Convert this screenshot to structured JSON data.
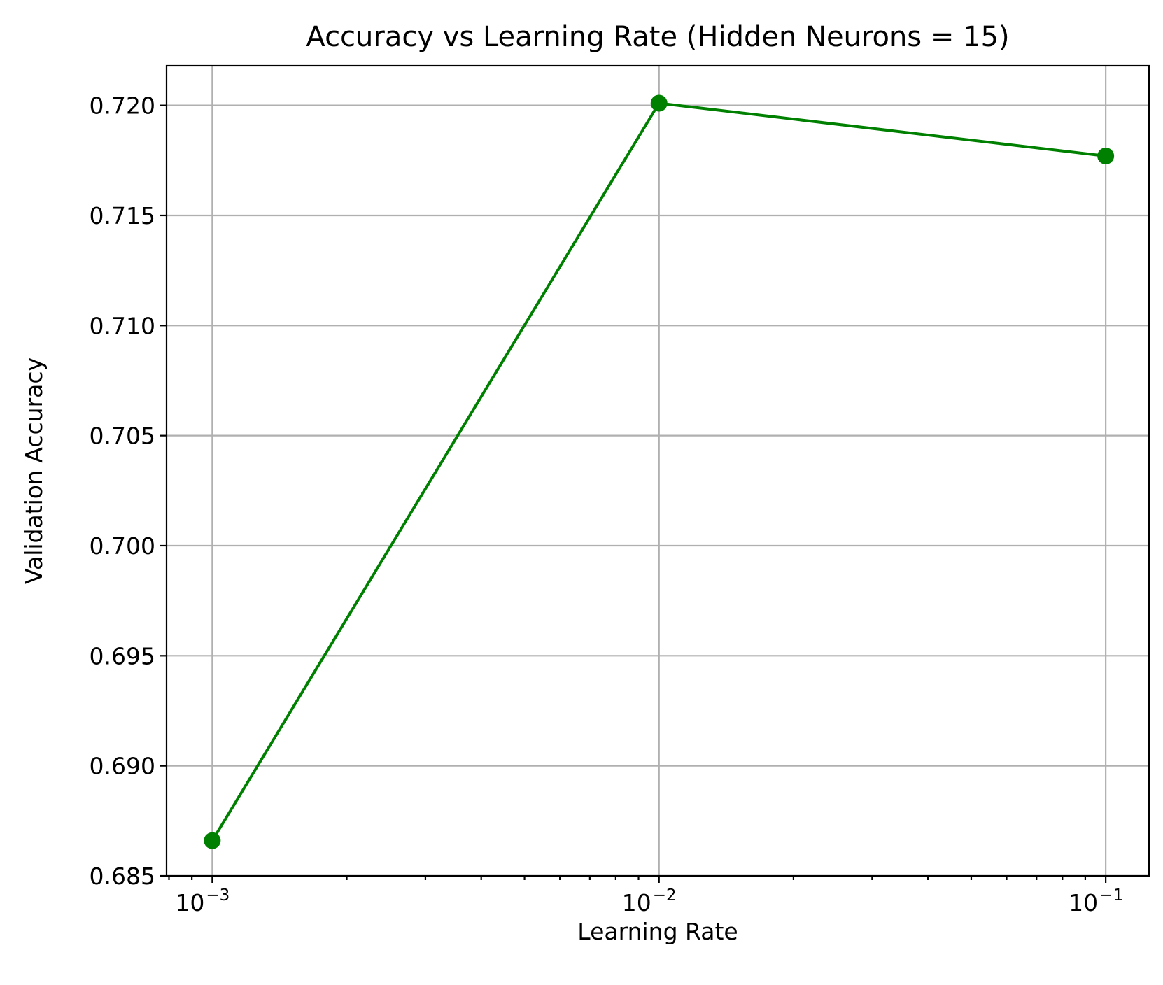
{
  "chart_data": {
    "type": "line",
    "title": "Accuracy vs Learning Rate (Hidden Neurons = 15)",
    "xlabel": "Learning Rate",
    "ylabel": "Validation Accuracy",
    "xscale": "log",
    "xlim": [
      0.00079,
      0.125
    ],
    "ylim": [
      0.685,
      0.7218
    ],
    "grid": true,
    "x_ticks": [
      {
        "value": 0.001,
        "base": "10",
        "exp": "−3"
      },
      {
        "value": 0.01,
        "base": "10",
        "exp": "−2"
      },
      {
        "value": 0.1,
        "base": "10",
        "exp": "−1"
      }
    ],
    "y_ticks": [
      "0.685",
      "0.690",
      "0.695",
      "0.700",
      "0.705",
      "0.710",
      "0.715",
      "0.720"
    ],
    "series": [
      {
        "color": "#008000",
        "marker": "circle",
        "x": [
          0.001,
          0.01,
          0.1
        ],
        "y": [
          0.6866,
          0.7201,
          0.7177
        ]
      }
    ]
  }
}
